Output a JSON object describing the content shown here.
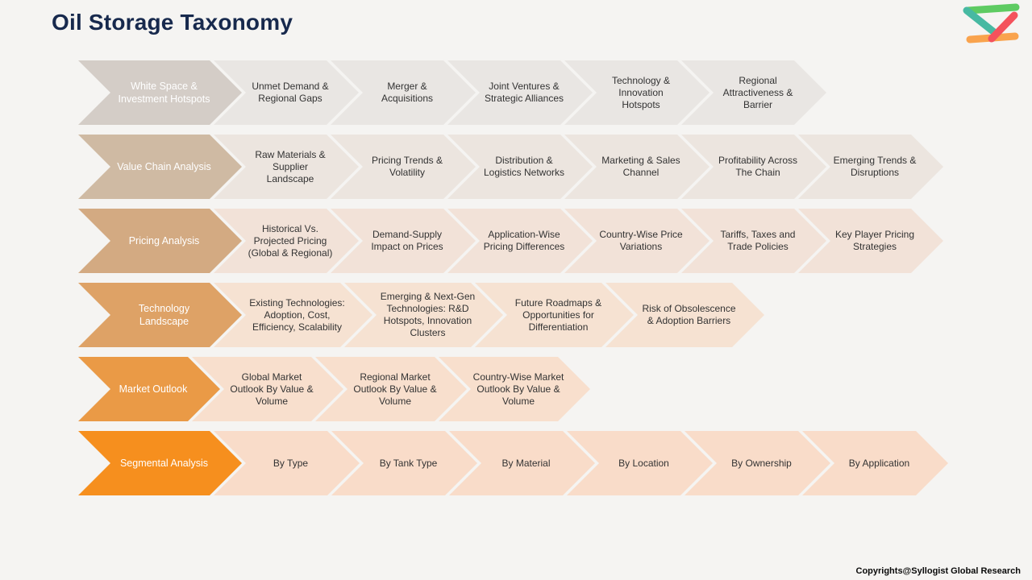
{
  "page": {
    "title": "Oil Storage Taxonomy",
    "title_color": "#17294d",
    "background": "#f5f4f2",
    "footer": "Copyrights@Syllogist Global Research"
  },
  "logo": {
    "name": "syllogist-logo",
    "colors": {
      "green": "#5ecb62",
      "teal": "#47b9a2",
      "red": "#f4525c",
      "orange": "#f9a34d"
    }
  },
  "taxonomy": {
    "rows": [
      {
        "label": "White Space & Investment Hotspots",
        "lead_color": "#d4cdc7",
        "item_color": "#e9e6e3",
        "items": [
          "Unmet Demand & Regional Gaps",
          "Merger & Acquisitions",
          "Joint Ventures & Strategic Alliances",
          "Technology & Innovation Hotspots",
          "Regional Attractiveness & Barrier"
        ]
      },
      {
        "label": "Value Chain Analysis",
        "lead_color": "#cfbaa3",
        "item_color": "#ece5df",
        "items": [
          "Raw Materials & Supplier Landscape",
          "Pricing Trends & Volatility",
          "Distribution & Logistics Networks",
          "Marketing & Sales Channel",
          "Profitability Across The Chain",
          "Emerging Trends & Disruptions"
        ]
      },
      {
        "label": "Pricing Analysis",
        "lead_color": "#d3aa82",
        "item_color": "#f2e2d8",
        "items": [
          "Historical Vs. Projected Pricing (Global & Regional)",
          "Demand-Supply Impact on Prices",
          "Application-Wise Pricing Differences",
          "Country-Wise Price Variations",
          "Tariffs, Taxes and Trade Policies",
          "Key Player Pricing Strategies"
        ]
      },
      {
        "label": "Technology Landscape",
        "lead_color": "#dea266",
        "item_color": "#f6e2d2",
        "items": [
          "Existing Technologies: Adoption, Cost, Efficiency, Scalability",
          "Emerging & Next-Gen Technologies: R&D Hotspots, Innovation Clusters",
          "Future Roadmaps & Opportunities for Differentiation",
          "Risk of Obsolescence & Adoption Barriers"
        ]
      },
      {
        "label": "Market Outlook",
        "lead_color": "#ea9a46",
        "item_color": "#f8dfcd",
        "items": [
          "Global Market Outlook By Value & Volume",
          "Regional Market Outlook By Value & Volume",
          "Country-Wise Market Outlook By Value & Volume"
        ]
      },
      {
        "label": "Segmental Analysis",
        "lead_color": "#f68f1e",
        "item_color": "#f9dcc9",
        "items": [
          "By Type",
          "By Tank Type",
          "By Material",
          "By Location",
          "By Ownership",
          "By Application"
        ]
      }
    ]
  }
}
